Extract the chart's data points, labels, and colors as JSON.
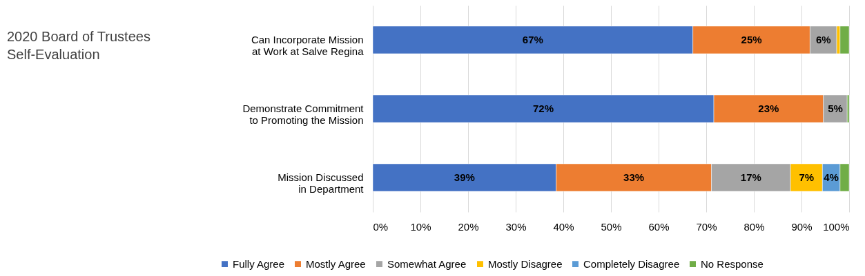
{
  "chart_data": {
    "type": "bar",
    "title": "2020 Board of Trustees Self-Evaluation",
    "orientation": "horizontal",
    "stacked": true,
    "categories": [
      "Can Incorporate Mission at Work at Salve Regina",
      "Demonstrate Commitment to Promoting the Mission",
      "Mission Discussed in Department"
    ],
    "series": [
      {
        "name": "Fully Agree",
        "color": "#4472c4",
        "values": [
          67.2,
          71.6,
          38.5
        ],
        "value_labels": [
          "67%",
          "72%",
          "39%"
        ]
      },
      {
        "name": "Mostly Agree",
        "color": "#ed7d31",
        "values": [
          24.6,
          23,
          32.6
        ],
        "value_labels": [
          "25%",
          "23%",
          "33%"
        ]
      },
      {
        "name": "Somewhat Agree",
        "color": "#a5a5a5",
        "values": [
          5.6,
          5,
          16.6
        ],
        "value_labels": [
          "6%",
          "5%",
          "17%"
        ]
      },
      {
        "name": "Mostly Disagree",
        "color": "#ffc000",
        "values": [
          0.7,
          null,
          6.7
        ],
        "value_labels": [
          null,
          null,
          "7%"
        ]
      },
      {
        "name": "Completely Disagree",
        "color": "#5b9bd5",
        "values": [
          null,
          null,
          3.7
        ],
        "value_labels": [
          null,
          null,
          "4%"
        ]
      },
      {
        "name": "No Response",
        "color": "#70ad47",
        "values": [
          1.9,
          0.4,
          1.9
        ],
        "value_labels": [
          null,
          null,
          null
        ]
      }
    ],
    "xlim": [
      0,
      100
    ],
    "xticks": [
      {
        "value": 0,
        "label": "0%"
      },
      {
        "value": 10,
        "label": "10%"
      },
      {
        "value": 20,
        "label": "20%"
      },
      {
        "value": 30,
        "label": "30%"
      },
      {
        "value": 40,
        "label": "40%"
      },
      {
        "value": 50,
        "label": "50%"
      },
      {
        "value": 60,
        "label": "60%"
      },
      {
        "value": 70,
        "label": "70%"
      },
      {
        "value": 80,
        "label": "80%"
      },
      {
        "value": 90,
        "label": "90%"
      },
      {
        "value": 100,
        "label": "100%"
      }
    ],
    "grid": "x",
    "legend": "bottom"
  }
}
